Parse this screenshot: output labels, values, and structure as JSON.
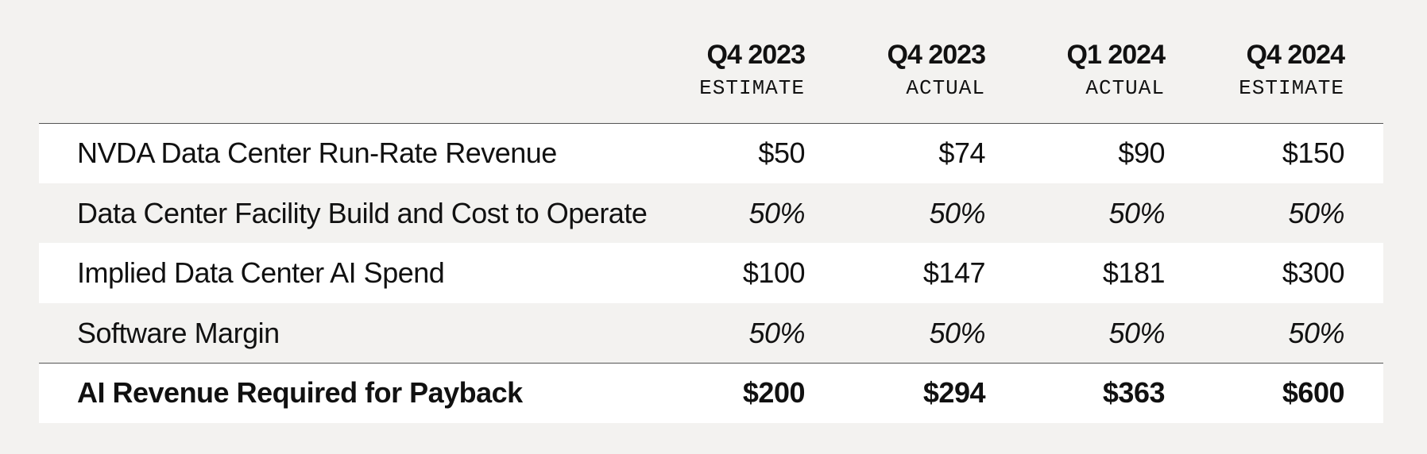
{
  "table": {
    "columns": [
      {
        "period": "Q4 2023",
        "kind": "ESTIMATE"
      },
      {
        "period": "Q4 2023",
        "kind": "ACTUAL"
      },
      {
        "period": "Q1 2024",
        "kind": "ACTUAL"
      },
      {
        "period": "Q4 2024",
        "kind": "ESTIMATE"
      }
    ],
    "rows": [
      {
        "label": "NVDA Data Center Run-Rate Revenue",
        "cells": [
          "$50",
          "$74",
          "$90",
          "$150"
        ]
      },
      {
        "label": "Data Center Facility Build and Cost to Operate",
        "cells": [
          "50%",
          "50%",
          "50%",
          "50%"
        ]
      },
      {
        "label": "Implied Data Center AI Spend",
        "cells": [
          "$100",
          "$147",
          "$181",
          "$300"
        ]
      },
      {
        "label": "Software Margin",
        "cells": [
          "50%",
          "50%",
          "50%",
          "50%"
        ]
      },
      {
        "label": "AI Revenue Required for Payback",
        "cells": [
          "$200",
          "$294",
          "$363",
          "$600"
        ]
      }
    ]
  }
}
